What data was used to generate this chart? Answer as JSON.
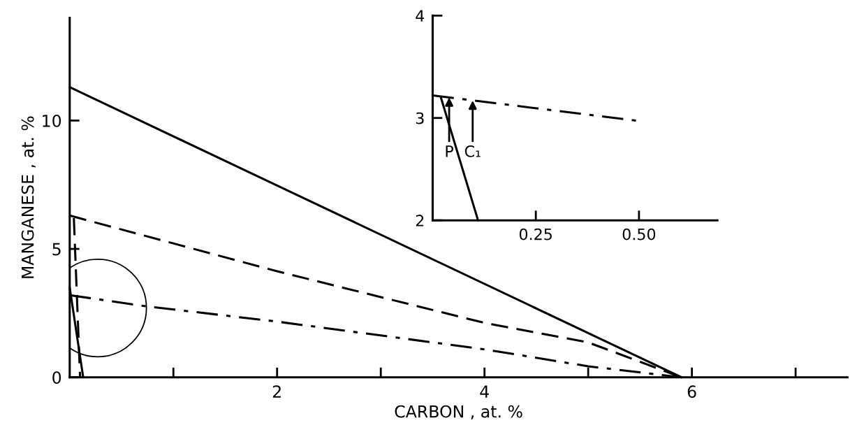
{
  "chart_data": [
    {
      "type": "line",
      "xlabel": "CARBON , at. %",
      "ylabel": "MANGANESE , at. %",
      "xlim": [
        0,
        7.5
      ],
      "ylim": [
        0,
        14
      ],
      "xticks": [
        {
          "value": 1,
          "label": null
        },
        2,
        {
          "value": 3,
          "label": null
        },
        4,
        {
          "value": 5,
          "label": null
        },
        6,
        {
          "value": 7,
          "label": null
        }
      ],
      "yticks": [
        0,
        5,
        10
      ],
      "grid": false,
      "legend": false,
      "marker": "none",
      "series": [
        {
          "color": "#000000",
          "line_style": "solid",
          "x": [
            0,
            5.9
          ],
          "values": [
            11.3,
            0
          ]
        },
        {
          "color": "#000000",
          "line_style": "dashed",
          "x": [
            0,
            2,
            4,
            5,
            5.9
          ],
          "values": [
            6.3,
            4.13,
            2.12,
            1.36,
            0
          ]
        },
        {
          "color": "#000000",
          "line_style": "dashdot",
          "x": [
            0,
            0.73,
            2,
            4,
            5,
            5.9
          ],
          "values": [
            3.2,
            2.77,
            2.17,
            1.09,
            0.43,
            0
          ]
        },
        {
          "color": "#000000",
          "line_style": "solid",
          "x": [
            0,
            0.13
          ],
          "values": [
            3.5,
            0
          ]
        },
        {
          "color": "#000000",
          "line_style": "dashed",
          "x": [
            0.04,
            0.1
          ],
          "values": [
            6.2,
            0
          ]
        }
      ]
    },
    {
      "type": "line",
      "xlim": [
        0,
        0.69
      ],
      "ylim": [
        2,
        4
      ],
      "xticks": [
        0.25,
        {
          "value": 0.5,
          "label": "0.50"
        }
      ],
      "yticks": [
        2,
        3,
        4
      ],
      "grid": false,
      "legend": false,
      "marker": "none",
      "series": [
        {
          "color": "#000000",
          "line_style": "dashdot",
          "x": [
            0,
            0.5
          ],
          "values": [
            3.22,
            2.97
          ]
        },
        {
          "color": "#000000",
          "line_style": "solid",
          "x": [
            0.02,
            0.11
          ],
          "values": [
            3.2,
            2
          ]
        }
      ],
      "annotations": [
        {
          "text": "P",
          "x": 0.04,
          "y": 3.2
        },
        {
          "text": "C₁",
          "x": 0.097,
          "y": 3.17
        }
      ]
    }
  ]
}
